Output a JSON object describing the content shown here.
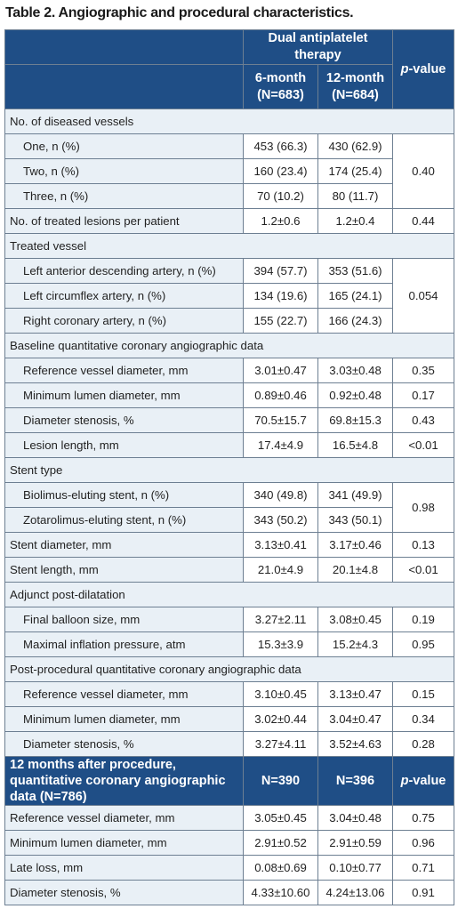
{
  "title": "Table 2. Angiographic and procedural characteristics.",
  "header": {
    "group": "Dual antiplatelet therapy",
    "col1": "6-month (N=683)",
    "col1_a": "6-month",
    "col1_b": "(N=683)",
    "col2_a": "12-month",
    "col2_b": "(N=684)",
    "pvalue_italic": "p",
    "pvalue_rest": "-value"
  },
  "rows": {
    "diseased": "No. of diseased vessels",
    "one": [
      "One, n (%)",
      "453 (66.3)",
      "430 (62.9)"
    ],
    "two": [
      "Two, n (%)",
      "160 (23.4)",
      "174 (25.4)"
    ],
    "three": [
      "Three, n (%)",
      "70 (10.2)",
      "80 (11.7)"
    ],
    "diseased_p": "0.40",
    "treated_lesions": [
      "No. of treated lesions per patient",
      "1.2±0.6",
      "1.2±0.4",
      "0.44"
    ],
    "treated_vessel": "Treated vessel",
    "lad": [
      "Left anterior descending artery, n (%)",
      "394 (57.7)",
      "353 (51.6)"
    ],
    "lcx": [
      "Left circumflex artery, n (%)",
      "134 (19.6)",
      "165 (24.1)"
    ],
    "rca": [
      "Right coronary artery, n (%)",
      "155 (22.7)",
      "166 (24.3)"
    ],
    "treated_vessel_p": "0.054",
    "baseline": "Baseline quantitative coronary angiographic data",
    "b_ref": [
      "Reference vessel diameter, mm",
      "3.01±0.47",
      "3.03±0.48",
      "0.35"
    ],
    "b_min": [
      "Minimum lumen diameter, mm",
      "0.89±0.46",
      "0.92±0.48",
      "0.17"
    ],
    "b_ds": [
      "Diameter stenosis, %",
      "70.5±15.7",
      "69.8±15.3",
      "0.43"
    ],
    "b_len": [
      "Lesion length, mm",
      "17.4±4.9",
      "16.5±4.8",
      "<0.01"
    ],
    "stent_type": "Stent type",
    "bes": [
      "Biolimus-eluting stent, n (%)",
      "340 (49.8)",
      "341 (49.9)"
    ],
    "zes": [
      "Zotarolimus-eluting stent, n (%)",
      "343 (50.2)",
      "343 (50.1)"
    ],
    "stent_type_p": "0.98",
    "stent_diam": [
      "Stent diameter, mm",
      "3.13±0.41",
      "3.17±0.46",
      "0.13"
    ],
    "stent_len": [
      "Stent length, mm",
      "21.0±4.9",
      "20.1±4.8",
      "<0.01"
    ],
    "adjunct": "Adjunct post-dilatation",
    "balloon": [
      "Final balloon size, mm",
      "3.27±2.11",
      "3.08±0.45",
      "0.19"
    ],
    "pressure": [
      "Maximal inflation pressure, atm",
      "15.3±3.9",
      "15.2±4.3",
      "0.95"
    ],
    "post": "Post-procedural quantitative coronary angiographic data",
    "p_ref": [
      "Reference vessel diameter, mm",
      "3.10±0.45",
      "3.13±0.47",
      "0.15"
    ],
    "p_min": [
      "Minimum lumen diameter, mm",
      "3.02±0.44",
      "3.04±0.47",
      "0.34"
    ],
    "p_ds": [
      "Diameter stenosis, %",
      "3.27±4.11",
      "3.52±4.63",
      "0.28"
    ]
  },
  "followup": {
    "label": "12 months after procedure, quantitative coronary angiographic data (N=786)",
    "n1": "N=390",
    "n2": "N=396",
    "p_italic": "p",
    "p_rest": "-value",
    "f_ref": [
      "Reference vessel diameter, mm",
      "3.05±0.45",
      "3.04±0.48",
      "0.75"
    ],
    "f_min": [
      "Minimum lumen diameter, mm",
      "2.91±0.52",
      "2.91±0.59",
      "0.96"
    ],
    "f_loss": [
      "Late loss, mm",
      "0.08±0.69",
      "0.10±0.77",
      "0.71"
    ],
    "f_ds": [
      "Diameter stenosis, %",
      "4.33±10.60",
      "4.24±13.06",
      "0.91"
    ]
  },
  "colors": {
    "header_bg": "#1f4e86",
    "label_bg": "#e9f0f6",
    "border": "#6d7f92"
  }
}
